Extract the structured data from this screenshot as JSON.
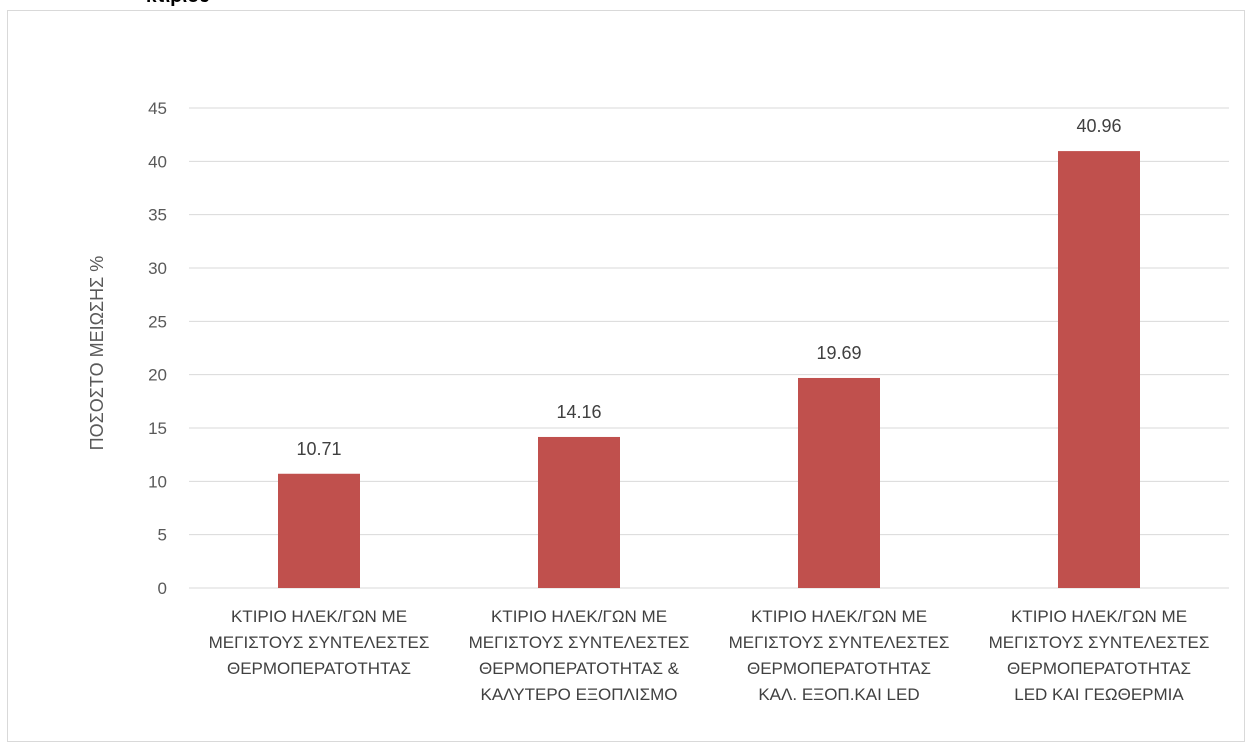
{
  "page": {
    "heading_fragment": "κτιρίου"
  },
  "chart_data": {
    "type": "bar",
    "title": "",
    "xlabel": "",
    "ylabel": "ΠΟΣΟΣΤΟ ΜΕΙΩΣΗΣ %",
    "ylim": [
      0,
      45
    ],
    "ytick_step": 5,
    "grid": true,
    "legend": "none",
    "bar_color": "#c0504d",
    "categories": [
      [
        "ΚΤΙΡΙΟ ΗΛΕΚ/ΓΩΝ  ΜΕ",
        "ΜΕΓΙΣΤΟΥΣ ΣΥΝΤΕΛΕΣΤΕΣ",
        "ΘΕΡΜΟΠΕΡΑΤΟΤΗΤΑΣ"
      ],
      [
        "ΚΤΙΡΙΟ ΗΛΕΚ/ΓΩΝ  ΜΕ",
        "ΜΕΓΙΣΤΟΥΣ ΣΥΝΤΕΛΕΣΤΕΣ",
        "ΘΕΡΜΟΠΕΡΑΤΟΤΗΤΑΣ &",
        "ΚΑΛΥΤΕΡΟ ΕΞΟΠΛΙΣΜΟ"
      ],
      [
        "ΚΤΙΡΙΟ ΗΛΕΚ/ΓΩΝ  ΜΕ",
        "ΜΕΓΙΣΤΟΥΣ ΣΥΝΤΕΛΕΣΤΕΣ",
        "ΘΕΡΜΟΠΕΡΑΤΟΤΗΤΑΣ",
        "ΚΑΛ. ΕΞΟΠ.ΚΑΙ  LED"
      ],
      [
        "ΚΤΙΡΙΟ ΗΛΕΚ/ΓΩΝ  ΜΕ",
        "ΜΕΓΙΣΤΟΥΣ ΣΥΝΤΕΛΕΣΤΕΣ",
        "ΘΕΡΜΟΠΕΡΑΤΟΤΗΤΑΣ",
        "LED ΚΑΙ ΓΕΩΘΕΡΜΙΑ"
      ]
    ],
    "values": [
      10.71,
      14.16,
      19.69,
      40.96
    ],
    "data_labels": [
      "10.71",
      "14.16",
      "19.69",
      "40.96"
    ]
  }
}
